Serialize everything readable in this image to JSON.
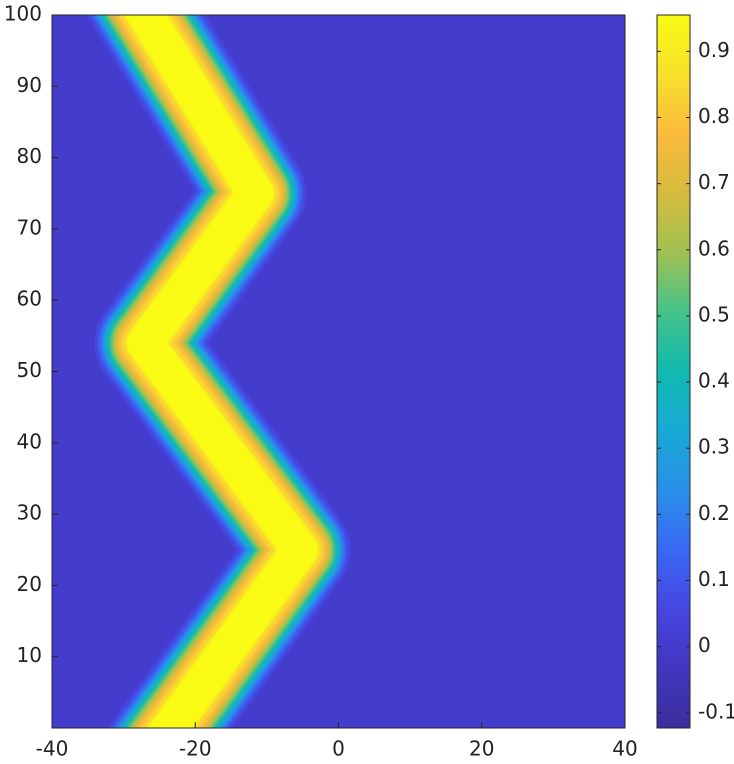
{
  "chart_data": {
    "type": "contour",
    "xlim": [
      -40,
      40
    ],
    "xticks": [
      -40,
      -20,
      0,
      20,
      40
    ],
    "ylim": [
      0,
      100
    ],
    "yticks": [
      10,
      20,
      30,
      40,
      50,
      60,
      70,
      80,
      90,
      100
    ],
    "ridge_x": [
      -23.5,
      -5.4,
      -27,
      -11.6,
      -26.9
    ],
    "ridge_y": [
      0,
      25,
      54,
      75,
      100
    ],
    "peak": 0.955,
    "background": 0.0,
    "ridge_width": 5.5,
    "clim": [
      -0.123,
      0.955
    ],
    "cticks": [
      -0.1,
      0,
      0.1,
      0.2,
      0.3,
      0.4,
      0.5,
      0.6,
      0.7,
      0.8,
      0.9
    ],
    "colormap": [
      "#3b2e9b",
      "#4236c0",
      "#4646e0",
      "#3868f5",
      "#2a8fe8",
      "#17aad6",
      "#11bab0",
      "#45c28a",
      "#a0c152",
      "#d6bb3e",
      "#fbbb3c",
      "#f7e02a",
      "#f9fb14"
    ]
  }
}
